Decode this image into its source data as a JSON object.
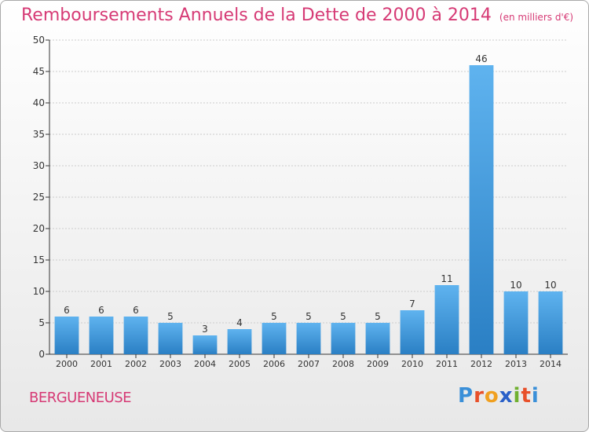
{
  "chart_data": {
    "type": "bar",
    "title": "Remboursements Annuels de la Dette de 2000 à 2014",
    "unit_label": "(en milliers d'€)",
    "categories": [
      "2000",
      "2001",
      "2002",
      "2003",
      "2004",
      "2005",
      "2006",
      "2007",
      "2008",
      "2009",
      "2010",
      "2011",
      "2012",
      "2013",
      "2014"
    ],
    "values": [
      6,
      6,
      6,
      5,
      3,
      4,
      5,
      5,
      5,
      5,
      7,
      11,
      46,
      10,
      10
    ],
    "ylim": [
      0,
      50
    ],
    "yticks": [
      0,
      5,
      10,
      15,
      20,
      25,
      30,
      35,
      40,
      45,
      50
    ],
    "xlabel": "",
    "ylabel": "",
    "grid": true,
    "colors": {
      "bar_top": "#5fb3ef",
      "bar_bottom": "#2a7fc4",
      "title": "#d63a75",
      "grid": "#cccccc"
    }
  },
  "commune": "BERGUENEUSE",
  "logo": {
    "letters": [
      "P",
      "r",
      "o",
      "x",
      "i",
      "t",
      "i"
    ],
    "colors": [
      "#3a8fd8",
      "#e8502a",
      "#f0a020",
      "#2a60c8",
      "#70b030",
      "#e8502a",
      "#3a8fd8"
    ]
  }
}
